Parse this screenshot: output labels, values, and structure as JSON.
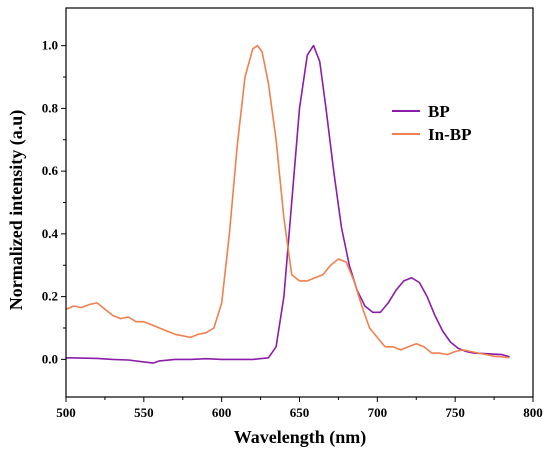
{
  "chart_data": {
    "type": "line",
    "xlabel": "Wavelength (nm)",
    "ylabel": "Normalized intensity (a.u)",
    "xlim": [
      500,
      800
    ],
    "ylim": [
      -0.12,
      1.12
    ],
    "x_ticks": [
      500,
      550,
      600,
      650,
      700,
      750,
      800
    ],
    "y_ticks": [
      0.0,
      0.2,
      0.4,
      0.6,
      0.8,
      1.0
    ],
    "x_tick_labels": [
      "500",
      "550",
      "600",
      "650",
      "700",
      "750",
      "800"
    ],
    "y_tick_labels": [
      "0.0",
      "0.2",
      "0.4",
      "0.6",
      "0.8",
      "1.0"
    ],
    "grid": false,
    "legend_position": "right",
    "series": [
      {
        "name": "BP",
        "color": "#8a1ea8",
        "x": [
          500,
          510,
          520,
          530,
          540,
          550,
          556,
          560,
          570,
          580,
          590,
          600,
          610,
          620,
          630,
          635,
          640,
          645,
          650,
          655,
          659,
          663,
          667,
          672,
          677,
          682,
          687,
          692,
          697,
          702,
          707,
          712,
          717,
          722,
          727,
          732,
          737,
          742,
          747,
          752,
          757,
          762,
          770,
          780,
          785
        ],
        "y": [
          0.005,
          0.004,
          0.003,
          0.0,
          -0.002,
          -0.008,
          -0.012,
          -0.005,
          0.0,
          0.0,
          0.002,
          0.0,
          0.0,
          0.0,
          0.005,
          0.04,
          0.2,
          0.5,
          0.8,
          0.97,
          1.0,
          0.95,
          0.8,
          0.6,
          0.42,
          0.3,
          0.22,
          0.17,
          0.15,
          0.15,
          0.18,
          0.22,
          0.25,
          0.26,
          0.245,
          0.2,
          0.14,
          0.09,
          0.055,
          0.035,
          0.025,
          0.02,
          0.018,
          0.015,
          0.008
        ]
      },
      {
        "name": "In-BP",
        "color": "#f0804f",
        "x": [
          500,
          505,
          510,
          515,
          520,
          525,
          530,
          535,
          540,
          545,
          550,
          555,
          560,
          565,
          570,
          575,
          580,
          585,
          590,
          595,
          600,
          605,
          610,
          615,
          620,
          623,
          626,
          630,
          635,
          640,
          645,
          650,
          655,
          660,
          665,
          670,
          675,
          680,
          685,
          690,
          695,
          700,
          705,
          710,
          715,
          720,
          725,
          730,
          735,
          740,
          745,
          750,
          755,
          760,
          765,
          770,
          775,
          780,
          785
        ],
        "y": [
          0.16,
          0.17,
          0.165,
          0.175,
          0.18,
          0.16,
          0.14,
          0.13,
          0.135,
          0.12,
          0.12,
          0.11,
          0.1,
          0.09,
          0.08,
          0.075,
          0.07,
          0.08,
          0.085,
          0.1,
          0.18,
          0.4,
          0.68,
          0.9,
          0.99,
          1.0,
          0.98,
          0.88,
          0.7,
          0.45,
          0.27,
          0.25,
          0.25,
          0.26,
          0.27,
          0.3,
          0.32,
          0.31,
          0.25,
          0.17,
          0.1,
          0.07,
          0.04,
          0.04,
          0.03,
          0.04,
          0.05,
          0.04,
          0.02,
          0.02,
          0.015,
          0.025,
          0.03,
          0.025,
          0.02,
          0.015,
          0.01,
          0.008,
          0.005
        ]
      }
    ]
  }
}
